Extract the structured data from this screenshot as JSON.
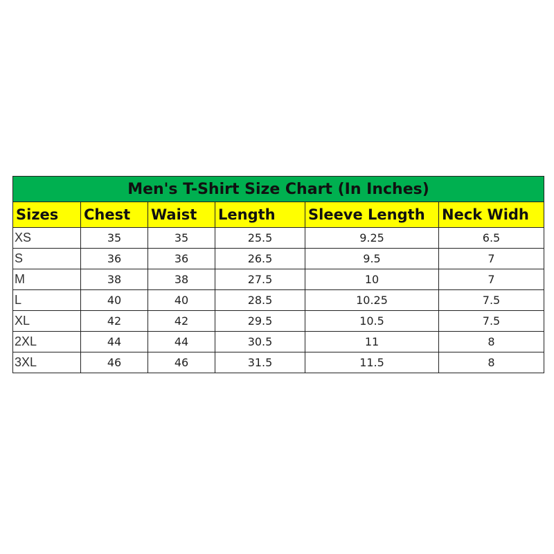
{
  "title": "Men's T-Shirt Size Chart (In Inches)",
  "colors": {
    "title_bg": "#00b050",
    "header_bg": "#ffff00"
  },
  "headers": [
    "Sizes",
    "Chest",
    "Waist",
    "Length",
    "Sleeve Length",
    "Neck Widh"
  ],
  "rows": [
    [
      "XS",
      "35",
      "35",
      "25.5",
      "9.25",
      "6.5"
    ],
    [
      "S",
      "36",
      "36",
      "26.5",
      "9.5",
      "7"
    ],
    [
      "M",
      "38",
      "38",
      "27.5",
      "10",
      "7"
    ],
    [
      "L",
      "40",
      "40",
      "28.5",
      "10.25",
      "7.5"
    ],
    [
      "XL",
      "42",
      "42",
      "29.5",
      "10.5",
      "7.5"
    ],
    [
      "2XL",
      "44",
      "44",
      "30.5",
      "11",
      "8"
    ],
    [
      "3XL",
      "46",
      "46",
      "31.5",
      "11.5",
      "8"
    ]
  ]
}
